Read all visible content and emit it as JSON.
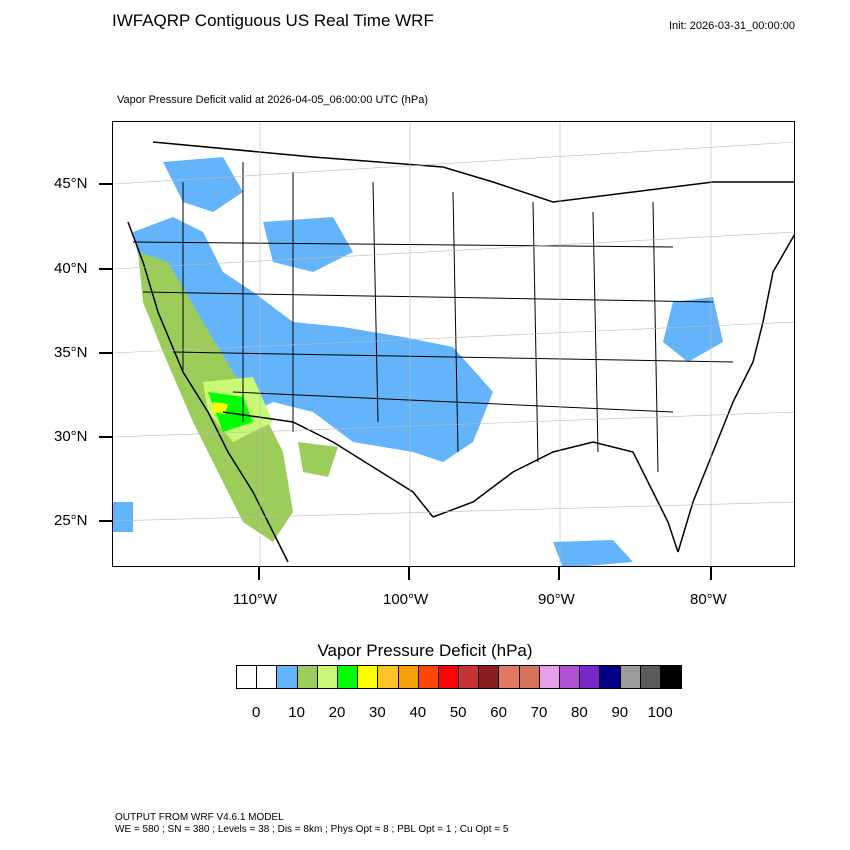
{
  "header": {
    "title": "IWFAQRP Contiguous US Real Time WRF",
    "init": "Init: 2026-03-31_00:00:00"
  },
  "map": {
    "subtitle": "Vapor Pressure Deficit valid at 2026-04-05_06:00:00 UTC   (hPa)",
    "lat_labels": [
      "45°N",
      "40°N",
      "35°N",
      "30°N",
      "25°N"
    ],
    "lon_labels": [
      "110°W",
      "100°W",
      "90°W",
      "80°W"
    ]
  },
  "colorbar": {
    "title": "Vapor Pressure Deficit  (hPa)",
    "colors": [
      "#ffffff",
      "#ffffff",
      "#63b4fa",
      "#9ccd5a",
      "#c8fa78",
      "#00ff00",
      "#ffff00",
      "#ffc328",
      "#f5a00a",
      "#ff4600",
      "#ff0000",
      "#c83232",
      "#8c1e1e",
      "#e17864",
      "#d2735a",
      "#e6a0e6",
      "#af50d2",
      "#7828c8",
      "#000087",
      "#9b9b9b",
      "#5a5a5a",
      "#000000"
    ],
    "labels": [
      "0",
      "10",
      "20",
      "30",
      "40",
      "50",
      "60",
      "70",
      "80",
      "90",
      "100"
    ]
  },
  "footer": {
    "line1": "OUTPUT FROM WRF V4.6.1 MODEL",
    "line2": "WE = 580 ; SN = 380 ; Levels = 38 ; Dis = 8km ; Phys Opt = 8 ; PBL Opt = 1 ; Cu Opt = 5"
  }
}
